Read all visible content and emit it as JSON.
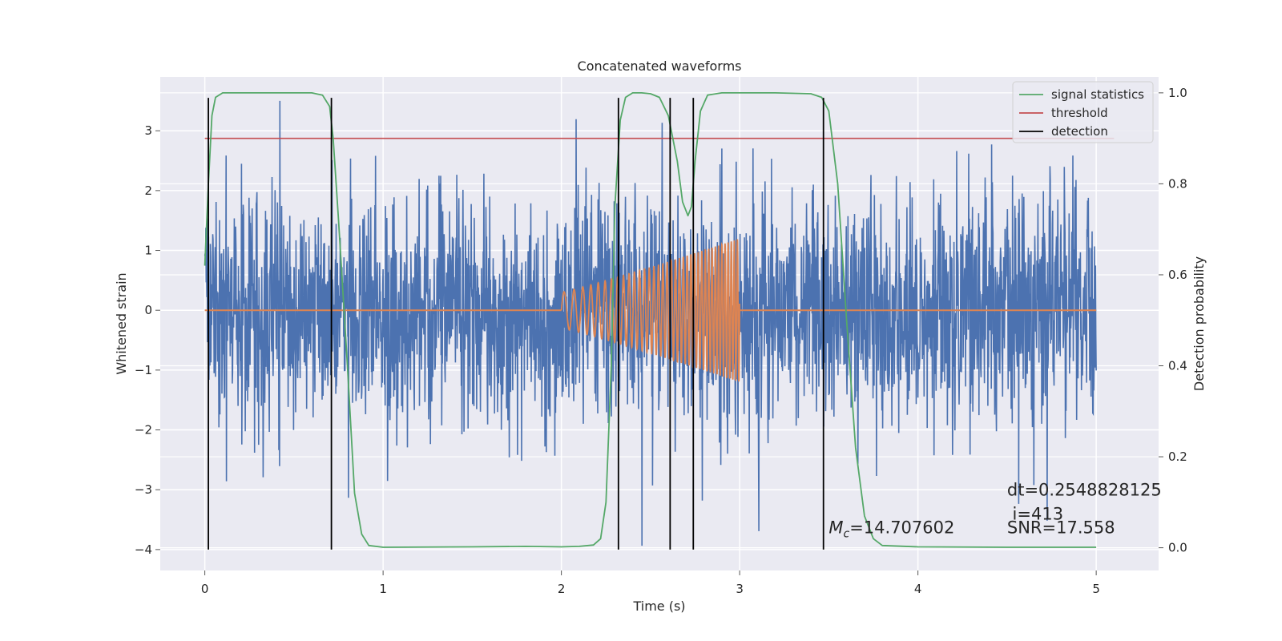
{
  "chart_data": {
    "type": "line",
    "title": "Concatenated waveforms",
    "xlabel": "Time (s)",
    "ylabel": "Whitened strain",
    "y2label": "Detection probability",
    "xlim": [
      -0.25,
      5.35
    ],
    "ylim": [
      -4.35,
      3.9
    ],
    "y2lim": [
      -0.05,
      1.035
    ],
    "x_ticks": [
      0,
      1,
      2,
      3,
      4,
      5
    ],
    "y_ticks": [
      -4,
      -3,
      -2,
      -1,
      0,
      1,
      2,
      3
    ],
    "y2_ticks": [
      0.0,
      0.2,
      0.4,
      0.6,
      0.8,
      1.0
    ],
    "y2_tick_labels": [
      "0.0",
      "0.2",
      "0.4",
      "0.6",
      "0.8",
      "1.0"
    ],
    "grid": true,
    "legend": {
      "position": "top-right",
      "entries": [
        {
          "label": "signal statistics",
          "color": "#55a868"
        },
        {
          "label": "threshold",
          "color": "#c44e52"
        },
        {
          "label": "detection",
          "color": "#000000"
        }
      ]
    },
    "colors": {
      "strain": "#4c72b0",
      "waveform": "#dd8452",
      "signal_statistics": "#55a868",
      "threshold": "#c44e52",
      "detection": "#000000",
      "background": "#eaeaf2"
    },
    "strain_noise": {
      "x_range": [
        0,
        5
      ],
      "approx_std": 0.95,
      "spike_max": 3.5,
      "spike_min": -4.0
    },
    "waveform_chirp": {
      "x_range": [
        2.0,
        3.0
      ],
      "amplitude_start": 0.3,
      "amplitude_end": 1.2,
      "freq_start_hz": 16,
      "freq_end_hz": 60
    },
    "threshold_value": 0.9,
    "threshold_x_range": [
      0.0,
      5.1
    ],
    "signal_statistics": {
      "x": [
        0.0,
        0.02,
        0.04,
        0.06,
        0.1,
        0.2,
        0.4,
        0.6,
        0.66,
        0.7,
        0.72,
        0.75,
        0.8,
        0.84,
        0.88,
        0.92,
        1.0,
        1.5,
        1.8,
        2.0,
        2.1,
        2.18,
        2.22,
        2.25,
        2.28,
        2.3,
        2.33,
        2.36,
        2.4,
        2.45,
        2.5,
        2.55,
        2.6,
        2.65,
        2.68,
        2.71,
        2.73,
        2.75,
        2.78,
        2.82,
        2.9,
        3.0,
        3.2,
        3.4,
        3.46,
        3.5,
        3.55,
        3.6,
        3.65,
        3.7,
        3.75,
        3.8,
        4.0,
        4.5,
        5.0
      ],
      "y": [
        0.62,
        0.8,
        0.95,
        0.99,
        1.0,
        1.0,
        1.0,
        1.0,
        0.995,
        0.97,
        0.9,
        0.72,
        0.4,
        0.12,
        0.03,
        0.005,
        0.001,
        0.002,
        0.003,
        0.002,
        0.003,
        0.006,
        0.02,
        0.1,
        0.4,
        0.75,
        0.94,
        0.99,
        1.0,
        1.0,
        0.998,
        0.99,
        0.95,
        0.85,
        0.76,
        0.73,
        0.75,
        0.85,
        0.96,
        0.995,
        1.0,
        1.0,
        1.0,
        0.998,
        0.99,
        0.96,
        0.8,
        0.5,
        0.22,
        0.07,
        0.02,
        0.005,
        0.002,
        0.001,
        0.001
      ]
    },
    "detections": [
      0.02,
      0.71,
      2.32,
      2.61,
      2.74,
      3.47
    ],
    "annotations": [
      {
        "text": "dt=0.2548828125",
        "x": 4.5,
        "y": -3.1
      },
      {
        "text": " i=413",
        "x": 4.5,
        "y": -3.5
      },
      {
        "text": "SNR=17.558",
        "x": 4.5,
        "y": -3.73
      },
      {
        "text_symbol": "M",
        "text_sub": "c",
        "text_rest": "=14.707602",
        "x": 3.5,
        "y": -3.73
      }
    ]
  }
}
